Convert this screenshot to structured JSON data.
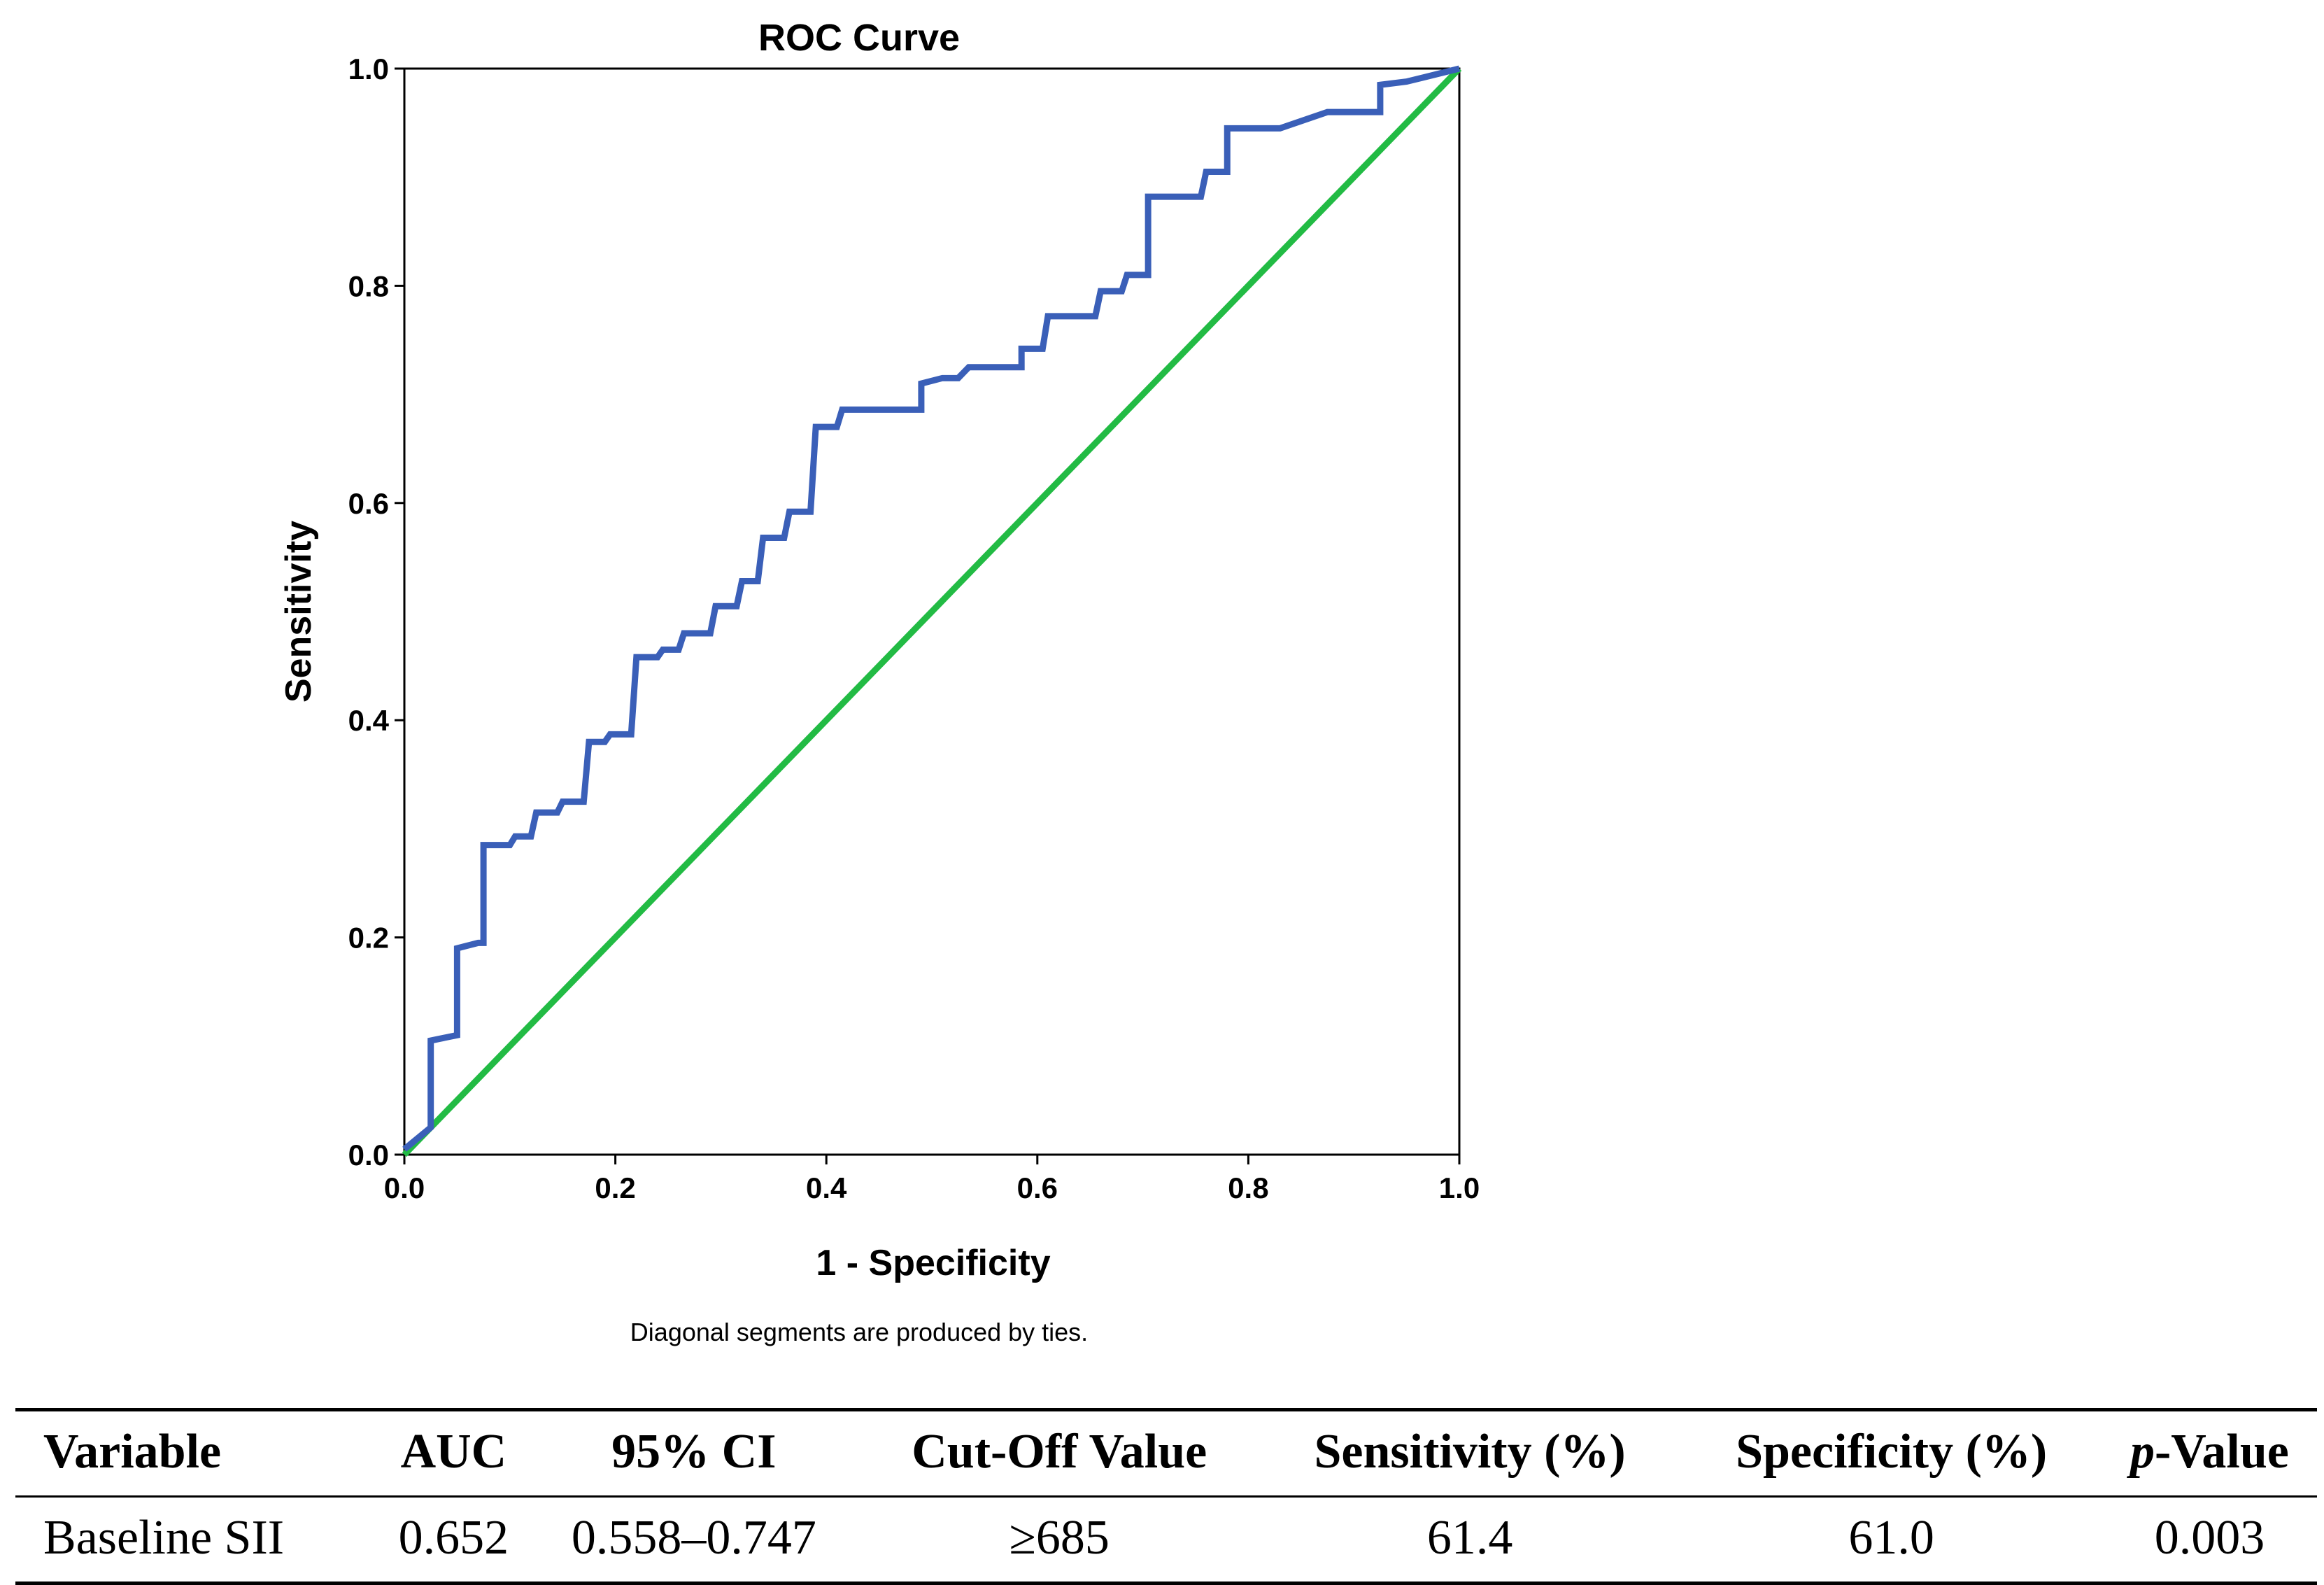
{
  "chart_data": {
    "type": "line",
    "title": "ROC Curve",
    "xlabel": "1 - Specificity",
    "ylabel": "Sensitivity",
    "xlim": [
      0.0,
      1.0
    ],
    "ylim": [
      0.0,
      1.0
    ],
    "ticks": [
      "0.0",
      "0.2",
      "0.4",
      "0.6",
      "0.8",
      "1.0"
    ],
    "footnote": "Diagonal segments are produced by ties.",
    "colors": {
      "roc": "#3a5fb8",
      "reference": "#22bb44"
    },
    "series": [
      {
        "name": "ROC",
        "x": [
          0.0,
          0.025,
          0.025,
          0.05,
          0.05,
          0.07,
          0.075,
          0.075,
          0.1,
          0.105,
          0.12,
          0.125,
          0.145,
          0.15,
          0.17,
          0.175,
          0.19,
          0.195,
          0.215,
          0.22,
          0.24,
          0.245,
          0.26,
          0.265,
          0.29,
          0.295,
          0.315,
          0.32,
          0.335,
          0.34,
          0.36,
          0.365,
          0.385,
          0.39,
          0.41,
          0.415,
          0.49,
          0.49,
          0.51,
          0.525,
          0.535,
          0.545,
          0.585,
          0.585,
          0.605,
          0.61,
          0.655,
          0.66,
          0.68,
          0.685,
          0.705,
          0.705,
          0.755,
          0.76,
          0.78,
          0.78,
          0.83,
          0.875,
          0.925,
          0.925,
          0.95,
          1.0
        ],
        "y": [
          0.005,
          0.025,
          0.105,
          0.11,
          0.19,
          0.195,
          0.195,
          0.285,
          0.285,
          0.293,
          0.293,
          0.315,
          0.315,
          0.325,
          0.325,
          0.38,
          0.38,
          0.387,
          0.387,
          0.458,
          0.458,
          0.465,
          0.465,
          0.48,
          0.48,
          0.505,
          0.505,
          0.528,
          0.528,
          0.568,
          0.568,
          0.592,
          0.592,
          0.67,
          0.67,
          0.686,
          0.686,
          0.71,
          0.715,
          0.715,
          0.725,
          0.725,
          0.725,
          0.742,
          0.742,
          0.772,
          0.772,
          0.795,
          0.795,
          0.81,
          0.81,
          0.882,
          0.882,
          0.905,
          0.905,
          0.945,
          0.945,
          0.96,
          0.96,
          0.985,
          0.988,
          1.0
        ]
      },
      {
        "name": "Reference line",
        "x": [
          0.0,
          1.0
        ],
        "y": [
          0.0,
          1.0
        ]
      }
    ]
  },
  "table": {
    "headers": [
      "Variable",
      "AUC",
      "95% CI",
      "Cut-Off Value",
      "Sensitivity (%)",
      "Specificity (%)"
    ],
    "pvalue_header": {
      "italic": "p",
      "rest": "-Value"
    },
    "rows": [
      [
        "Baseline SII",
        "0.652",
        "0.558–0.747",
        "≥685",
        "61.4",
        "61.0",
        "0.003"
      ]
    ]
  }
}
